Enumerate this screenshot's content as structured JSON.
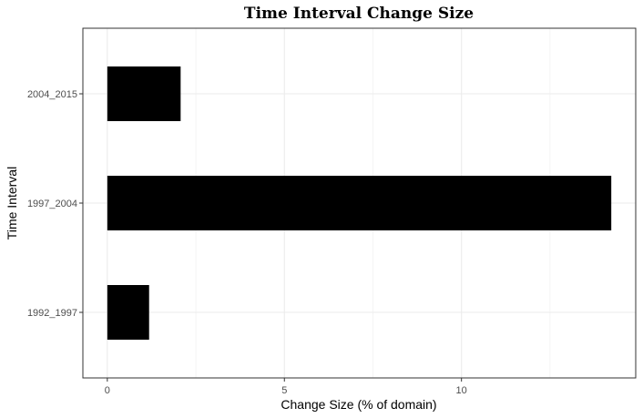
{
  "chart_data": {
    "type": "bar",
    "orientation": "horizontal",
    "title": "Time Interval Change Size",
    "xlabel": "Change Size (% of domain)",
    "ylabel": "Time Interval",
    "categories": [
      "1992_1997",
      "1997_2004",
      "2004_2015"
    ],
    "values": [
      1.18,
      14.23,
      2.07
    ],
    "xlim": [
      -0.69,
      14.92
    ],
    "xticks": [
      0,
      5,
      10
    ],
    "grid": true,
    "legend": "none",
    "bar_color": "#000000"
  }
}
